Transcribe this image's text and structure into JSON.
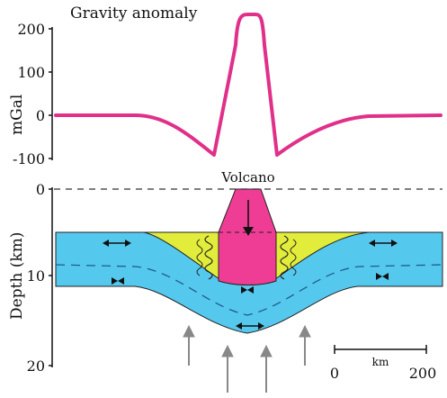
{
  "gravity_panel": {
    "title": "Gravity anomaly",
    "ylabel": "mGal",
    "ticks": [
      "200",
      "100",
      "0",
      "-100"
    ]
  },
  "depth_panel": {
    "ylabel": "Depth (km)",
    "ticks": [
      "0",
      "10",
      "20"
    ],
    "volcano_label": "Volcano"
  },
  "scale_bar": {
    "unit": "km",
    "start": "0",
    "end": "200"
  },
  "colors": {
    "anomaly_curve": "#e0308a",
    "crust": "#55c8ee",
    "sediment": "#e2ec3a",
    "volcano": "#ef3d96",
    "arrow": "#888888"
  },
  "icons": [
    "horizontal-extension-arrow-icon",
    "compression-bowtie-icon",
    "upward-force-arrow-icon",
    "magma-down-arrow-icon"
  ]
}
